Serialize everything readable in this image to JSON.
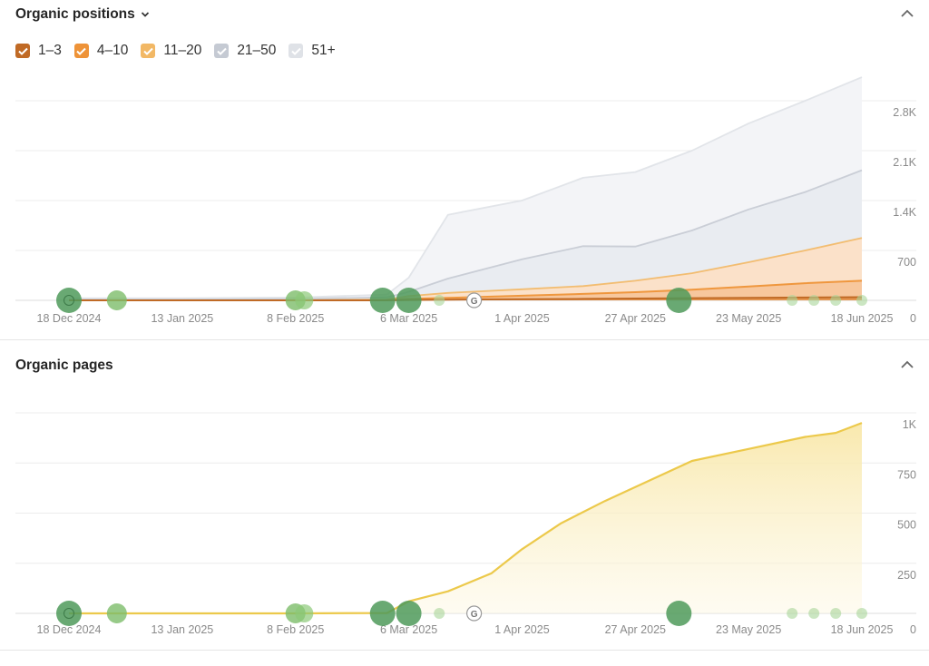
{
  "positions_section": {
    "title": "Organic positions",
    "legend": [
      {
        "label": "1–3",
        "color": "#c06a25"
      },
      {
        "label": "4–10",
        "color": "#ee9338"
      },
      {
        "label": "11–20",
        "color": "#f2b865"
      },
      {
        "label": "21–50",
        "color": "#c5cad3"
      },
      {
        "label": "51+",
        "color": "#dfe2e7"
      }
    ]
  },
  "pages_section": {
    "title": "Organic pages"
  },
  "chart_data": [
    {
      "type": "area",
      "title": "Organic positions",
      "x_tick_labels": [
        "18 Dec 2024",
        "13 Jan 2025",
        "8 Feb 2025",
        "6 Mar 2025",
        "1 Apr 2025",
        "27 Apr 2025",
        "23 May 2025",
        "18 Jun 2025"
      ],
      "y_tick_labels": [
        "0",
        "700",
        "1.4K",
        "2.1K",
        "2.8K"
      ],
      "ylim": [
        0,
        2800
      ],
      "stacked": true,
      "x": [
        "2024-12-18",
        "2025-01-13",
        "2025-02-08",
        "2025-03-01",
        "2025-03-06",
        "2025-03-15",
        "2025-04-01",
        "2025-04-15",
        "2025-04-27",
        "2025-05-10",
        "2025-05-23",
        "2025-06-05",
        "2025-06-18"
      ],
      "series": [
        {
          "name": "1–3",
          "color": "#c06a25",
          "values": [
            0,
            0,
            0,
            0,
            5,
            10,
            15,
            20,
            25,
            30,
            35,
            40,
            45
          ]
        },
        {
          "name": "4–10",
          "color": "#ee9338",
          "values": [
            0,
            0,
            0,
            2,
            15,
            25,
            50,
            70,
            90,
            120,
            160,
            200,
            230
          ]
        },
        {
          "name": "11–20",
          "color": "#f2b865",
          "values": [
            0,
            0,
            0,
            10,
            40,
            70,
            90,
            110,
            160,
            230,
            340,
            460,
            600
          ]
        },
        {
          "name": "21–50",
          "color": "#c5cad3",
          "values": [
            10,
            10,
            20,
            30,
            60,
            200,
            420,
            560,
            480,
            600,
            740,
            820,
            950
          ]
        },
        {
          "name": "51+",
          "color": "#dfe2e7",
          "values": [
            20,
            20,
            20,
            40,
            200,
            895,
            825,
            960,
            1045,
            1120,
            1205,
            1280,
            1305
          ]
        }
      ],
      "grid": true,
      "legend": "top-left"
    },
    {
      "type": "area",
      "title": "Organic pages",
      "x_tick_labels": [
        "18 Dec 2024",
        "13 Jan 2025",
        "8 Feb 2025",
        "6 Mar 2025",
        "1 Apr 2025",
        "27 Apr 2025",
        "23 May 2025",
        "18 Jun 2025"
      ],
      "y_tick_labels": [
        "0",
        "250",
        "500",
        "750",
        "1K"
      ],
      "ylim": [
        0,
        1000
      ],
      "x": [
        "2024-12-18",
        "2025-01-13",
        "2025-02-08",
        "2025-03-01",
        "2025-03-06",
        "2025-03-15",
        "2025-03-25",
        "2025-04-01",
        "2025-04-10",
        "2025-04-20",
        "2025-04-27",
        "2025-05-10",
        "2025-05-23",
        "2025-06-05",
        "2025-06-12",
        "2025-06-18"
      ],
      "series": [
        {
          "name": "Organic pages",
          "color": "#ecc94b",
          "values": [
            0,
            0,
            0,
            2,
            60,
            110,
            200,
            320,
            450,
            560,
            630,
            760,
            820,
            880,
            900,
            950
          ]
        }
      ],
      "grid": true
    }
  ]
}
